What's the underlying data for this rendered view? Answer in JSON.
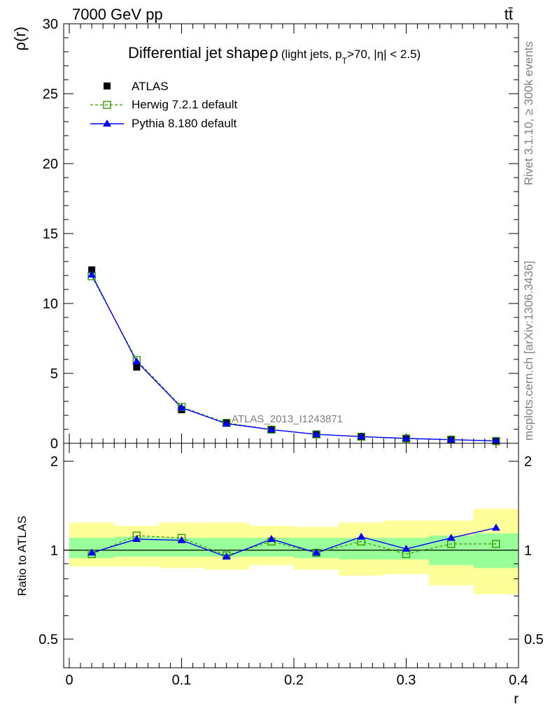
{
  "header": {
    "left": "7000 GeV pp",
    "right": "tt̄"
  },
  "side_labels": {
    "rivet": "Rivet 3.1.10, ≥ 300k events",
    "mcplots": "mcplots.cern.ch [arXiv:1306.3436]"
  },
  "watermark": "ATLAS_2013_I1243871",
  "colors": {
    "atlas": "#000000",
    "herwig": "#339900",
    "pythia": "#0000ff",
    "band_inner": "#99ff99",
    "band_outer": "#ffff99"
  },
  "chart_data": [
    {
      "type": "scatter",
      "title": "Differential jet shape",
      "title_rho": "ρ",
      "title_sub": "(light jets, p",
      "title_sub_T": "T",
      "title_sub_end": ">70, |η| < 2.5)",
      "ylabel": "ρ(r)",
      "xlabel": "",
      "xlim": [
        -0.005,
        0.4
      ],
      "ylim": [
        0,
        30
      ],
      "yticks": [
        0,
        5,
        10,
        15,
        20,
        25,
        30
      ],
      "ytick_labels": [
        "0",
        "5",
        "10",
        "15",
        "20",
        "25",
        "30"
      ],
      "x": [
        0.02,
        0.06,
        0.1,
        0.14,
        0.18,
        0.22,
        0.26,
        0.3,
        0.34,
        0.38
      ],
      "x_edges": [
        0.0,
        0.04,
        0.08,
        0.12,
        0.16,
        0.2,
        0.24,
        0.28,
        0.32,
        0.36,
        0.4
      ],
      "legend": [
        {
          "label": "ATLAS",
          "key": "atlas"
        },
        {
          "label": "Herwig 7.2.1 default",
          "key": "herwig"
        },
        {
          "label": "Pythia 8.180 default",
          "key": "pythia"
        }
      ],
      "series": [
        {
          "name": "ATLAS",
          "key": "atlas",
          "values": [
            12.4,
            5.45,
            2.4,
            1.5,
            0.95,
            0.65,
            0.45,
            0.35,
            0.25,
            0.15
          ]
        },
        {
          "name": "Herwig 7.2.1 default",
          "key": "herwig",
          "values": [
            11.95,
            5.95,
            2.6,
            1.46,
            0.98,
            0.64,
            0.47,
            0.34,
            0.26,
            0.16
          ]
        },
        {
          "name": "Pythia 8.180 default",
          "key": "pythia",
          "values": [
            12.05,
            5.85,
            2.55,
            1.4,
            0.98,
            0.64,
            0.48,
            0.35,
            0.26,
            0.17
          ]
        }
      ]
    },
    {
      "type": "scatter",
      "title": "",
      "ylabel": "Ratio to ATLAS",
      "xlabel": "r",
      "xlim": [
        -0.005,
        0.4
      ],
      "ylim": [
        0.4,
        2.3
      ],
      "log_y": true,
      "yticks": [
        0.5,
        1,
        2
      ],
      "ytick_labels": [
        "0.5",
        "1",
        "2"
      ],
      "xticks": [
        0,
        0.1,
        0.2,
        0.3,
        0.4
      ],
      "xtick_labels": [
        "0",
        "0.1",
        "0.2",
        "0.3",
        "0.4"
      ],
      "x": [
        0.02,
        0.06,
        0.1,
        0.14,
        0.18,
        0.22,
        0.26,
        0.3,
        0.34,
        0.38
      ],
      "x_edges": [
        0.0,
        0.04,
        0.08,
        0.12,
        0.16,
        0.2,
        0.24,
        0.28,
        0.32,
        0.36,
        0.4
      ],
      "band_inner": {
        "low": [
          0.94,
          0.95,
          0.95,
          0.95,
          0.95,
          0.94,
          0.93,
          0.93,
          0.89,
          0.87
        ],
        "high": [
          1.1,
          1.11,
          1.1,
          1.1,
          1.1,
          1.1,
          1.1,
          1.1,
          1.12,
          1.14
        ]
      },
      "band_outer": {
        "low": [
          0.88,
          0.88,
          0.87,
          0.86,
          0.89,
          0.86,
          0.82,
          0.83,
          0.76,
          0.71
        ],
        "high": [
          1.24,
          1.21,
          1.24,
          1.24,
          1.21,
          1.2,
          1.24,
          1.26,
          1.26,
          1.38
        ]
      },
      "series": [
        {
          "name": "Herwig 7.2.1 default",
          "key": "herwig",
          "values": [
            0.97,
            1.12,
            1.1,
            0.96,
            1.07,
            0.98,
            1.07,
            0.97,
            1.05,
            1.05
          ]
        },
        {
          "name": "Pythia 8.180 default",
          "key": "pythia",
          "values": [
            0.98,
            1.09,
            1.08,
            0.95,
            1.09,
            0.98,
            1.11,
            1.01,
            1.1,
            1.19
          ]
        }
      ]
    }
  ]
}
